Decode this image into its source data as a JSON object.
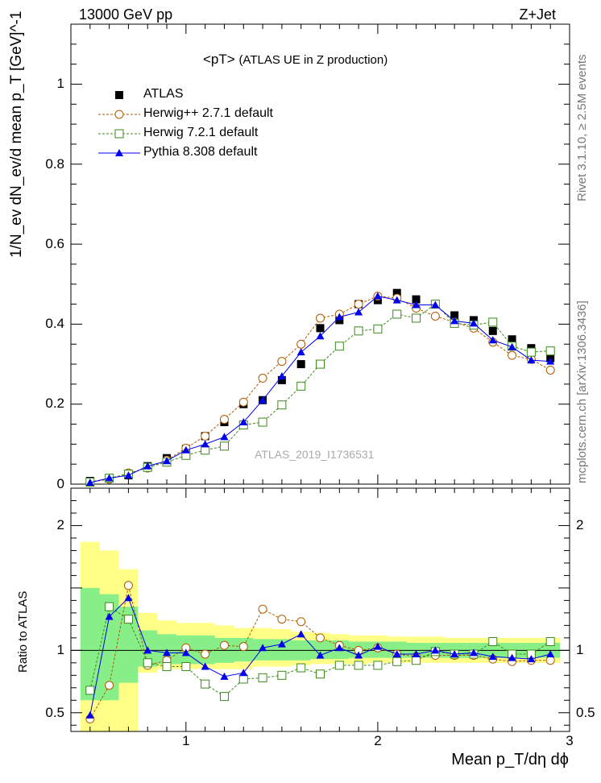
{
  "header": {
    "left": "13000 GeV pp",
    "right": "Z+Jet"
  },
  "title": "<pT>",
  "title_suffix": "(ATLAS UE in Z production)",
  "side_right_top": "Rivet 3.1.10, ≥ 2.5M events",
  "side_right_bottom": "mcplots.cern.ch [arXiv:1306.3436]",
  "watermark": "ATLAS_2019_I1736531",
  "ylabel_main": "1/N_ev dN_ev/d mean p_T [GeV]^-1",
  "ylabel_ratio": "Ratio to ATLAS",
  "xlabel": "Mean p_T/dη dϕ",
  "colors": {
    "atlas": "#000000",
    "herwigpp": "#b35900",
    "herwig7": "#3a8a1a",
    "pythia": "#0000ee",
    "band_yellow": "#ffff88",
    "band_green": "#88ee88"
  },
  "chart_data": {
    "type": "line",
    "x": [
      0.5,
      0.6,
      0.7,
      0.8,
      0.9,
      1.0,
      1.1,
      1.2,
      1.3,
      1.4,
      1.5,
      1.6,
      1.7,
      1.8,
      1.9,
      2.0,
      2.1,
      2.2,
      2.3,
      2.4,
      2.5,
      2.6,
      2.7,
      2.8,
      2.9
    ],
    "xlim": [
      0.4,
      3.0
    ],
    "main": {
      "ylim": [
        0,
        1.15
      ],
      "yticks": [
        0,
        0.2,
        0.4,
        0.6,
        0.8,
        1.0
      ],
      "ytick_labels": [
        "0",
        "0.2",
        "0.4",
        "0.6",
        "0.8",
        "1"
      ],
      "series": [
        {
          "key": "atlas",
          "name": "ATLAS",
          "marker": "square-filled",
          "values": [
            0.008,
            0.015,
            0.022,
            0.045,
            0.065,
            0.088,
            0.12,
            0.155,
            0.2,
            0.21,
            0.26,
            0.3,
            0.39,
            0.41,
            0.45,
            0.46,
            0.478,
            0.462,
            0.45,
            0.422,
            0.41,
            0.383,
            0.362,
            0.34,
            0.315
          ]
        },
        {
          "key": "herwigpp",
          "name": "Herwig++ 2.7.1 default",
          "marker": "circle-open",
          "values": [
            0.005,
            0.012,
            0.028,
            0.04,
            0.06,
            0.09,
            0.12,
            0.162,
            0.205,
            0.265,
            0.307,
            0.35,
            0.415,
            0.425,
            0.45,
            0.47,
            0.465,
            0.44,
            0.42,
            0.405,
            0.39,
            0.355,
            0.322,
            0.312,
            0.285
          ]
        },
        {
          "key": "herwig7",
          "name": "Herwig 7.2.1 default",
          "marker": "square-open",
          "values": [
            0.005,
            0.015,
            0.025,
            0.042,
            0.055,
            0.072,
            0.085,
            0.095,
            0.148,
            0.155,
            0.198,
            0.245,
            0.3,
            0.345,
            0.383,
            0.388,
            0.425,
            0.415,
            0.45,
            0.402,
            0.398,
            0.405,
            0.345,
            0.33,
            0.333
          ]
        },
        {
          "key": "pythia",
          "name": "Pythia 8.308 default",
          "marker": "triangle-filled",
          "values": [
            0.004,
            0.015,
            0.022,
            0.045,
            0.058,
            0.085,
            0.1,
            0.118,
            0.155,
            0.21,
            0.27,
            0.33,
            0.37,
            0.418,
            0.43,
            0.47,
            0.46,
            0.448,
            0.448,
            0.408,
            0.402,
            0.36,
            0.343,
            0.31,
            0.307
          ]
        }
      ]
    },
    "ratio": {
      "ylim": [
        0.35,
        2.3
      ],
      "yticks": [
        0.5,
        1.0,
        1.5,
        2.0
      ],
      "ytick_labels": [
        "0.5",
        "1",
        "",
        "2"
      ],
      "bands": {
        "yellow_lo": [
          0.35,
          0.35,
          0.35,
          0.82,
          0.85,
          0.85,
          0.85,
          0.85,
          0.85,
          0.87,
          0.87,
          0.88,
          0.89,
          0.89,
          0.89,
          0.9,
          0.9,
          0.9,
          0.9,
          0.9,
          0.9,
          0.9,
          0.9,
          0.9,
          0.9
        ],
        "yellow_hi": [
          1.87,
          1.8,
          1.65,
          1.3,
          1.24,
          1.22,
          1.22,
          1.2,
          1.18,
          1.18,
          1.17,
          1.15,
          1.14,
          1.13,
          1.12,
          1.12,
          1.11,
          1.11,
          1.11,
          1.1,
          1.1,
          1.1,
          1.1,
          1.1,
          1.1
        ],
        "green_lo": [
          0.6,
          0.6,
          0.74,
          0.87,
          0.89,
          0.89,
          0.89,
          0.9,
          0.91,
          0.92,
          0.92,
          0.92,
          0.93,
          0.93,
          0.94,
          0.94,
          0.94,
          0.94,
          0.94,
          0.94,
          0.94,
          0.94,
          0.94,
          0.94,
          0.94
        ],
        "green_hi": [
          1.5,
          1.45,
          1.35,
          1.16,
          1.13,
          1.12,
          1.12,
          1.1,
          1.1,
          1.09,
          1.09,
          1.08,
          1.08,
          1.08,
          1.07,
          1.07,
          1.07,
          1.06,
          1.06,
          1.06,
          1.06,
          1.06,
          1.06,
          1.06,
          1.06
        ]
      },
      "series": [
        {
          "key": "herwigpp",
          "values": [
            0.45,
            0.72,
            1.52,
            0.88,
            0.92,
            1.02,
            0.97,
            1.04,
            1.03,
            1.33,
            1.25,
            1.23,
            1.1,
            1.04,
            1.0,
            1.02,
            0.97,
            0.95,
            0.96,
            0.96,
            0.96,
            0.93,
            0.91,
            0.92,
            0.92
          ]
        },
        {
          "key": "herwig7",
          "values": [
            0.68,
            1.35,
            1.25,
            0.9,
            0.87,
            0.87,
            0.73,
            0.63,
            0.77,
            0.78,
            0.8,
            0.86,
            0.81,
            0.88,
            0.88,
            0.88,
            0.91,
            0.92,
            0.99,
            0.97,
            0.97,
            1.07,
            0.97,
            0.97,
            1.07
          ]
        },
        {
          "key": "pythia",
          "values": [
            0.48,
            1.27,
            1.42,
            1.0,
            0.98,
            0.98,
            0.87,
            0.79,
            0.82,
            1.02,
            1.05,
            1.13,
            0.96,
            1.02,
            0.96,
            1.03,
            0.97,
            0.97,
            1.0,
            0.97,
            0.98,
            0.95,
            0.94,
            0.93,
            0.97
          ]
        }
      ]
    },
    "xticks": [
      1,
      2,
      3
    ],
    "xtick_labels": [
      "1",
      "2",
      "3"
    ]
  }
}
